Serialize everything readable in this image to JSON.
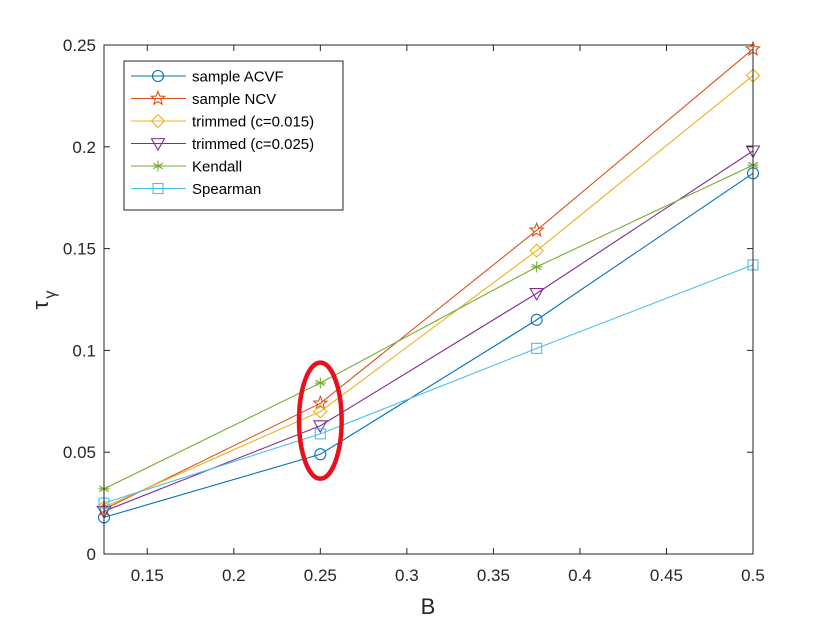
{
  "chart_data": {
    "type": "line",
    "title": "",
    "xlabel": "B",
    "ylabel": "τ",
    "ylabel_sub": "γ",
    "xlim": [
      0.125,
      0.5
    ],
    "ylim": [
      0,
      0.25
    ],
    "xticks": [
      0.15,
      0.2,
      0.25,
      0.3,
      0.35,
      0.4,
      0.45,
      0.5
    ],
    "xtick_labels": [
      "0.15",
      "0.2",
      "0.25",
      "0.3",
      "0.35",
      "0.4",
      "0.45",
      "0.5"
    ],
    "yticks": [
      0,
      0.05,
      0.1,
      0.15,
      0.2,
      0.25
    ],
    "ytick_labels": [
      "0",
      "0.05",
      "0.1",
      "0.15",
      "0.2",
      "0.25"
    ],
    "grid": false,
    "legend_position": "top-left",
    "x": [
      0.125,
      0.25,
      0.375,
      0.5
    ],
    "series": [
      {
        "name": "sample ACVF",
        "marker": "circle",
        "color": "#0072BD",
        "values": [
          0.018,
          0.049,
          0.115,
          0.187
        ]
      },
      {
        "name": "sample NCV",
        "marker": "star",
        "color": "#D95319",
        "values": [
          0.022,
          0.074,
          0.159,
          0.248
        ]
      },
      {
        "name": "trimmed (c=0.015)",
        "marker": "diamond",
        "color": "#EDB120",
        "values": [
          0.023,
          0.07,
          0.149,
          0.235
        ]
      },
      {
        "name": "trimmed (c=0.025)",
        "marker": "triangle-down",
        "color": "#7E2F8E",
        "values": [
          0.021,
          0.063,
          0.128,
          0.198
        ]
      },
      {
        "name": "Kendall",
        "marker": "asterisk",
        "color": "#77AC30",
        "values": [
          0.032,
          0.084,
          0.141,
          0.191
        ]
      },
      {
        "name": "Spearman",
        "marker": "square",
        "color": "#4DBEEE",
        "values": [
          0.025,
          0.059,
          0.101,
          0.142
        ]
      }
    ],
    "annotation": {
      "type": "ellipse",
      "color": "#E8101A",
      "center_x": 0.25,
      "center_y": 0.0655,
      "radius_x": 0.0123,
      "radius_y": 0.0285
    }
  }
}
